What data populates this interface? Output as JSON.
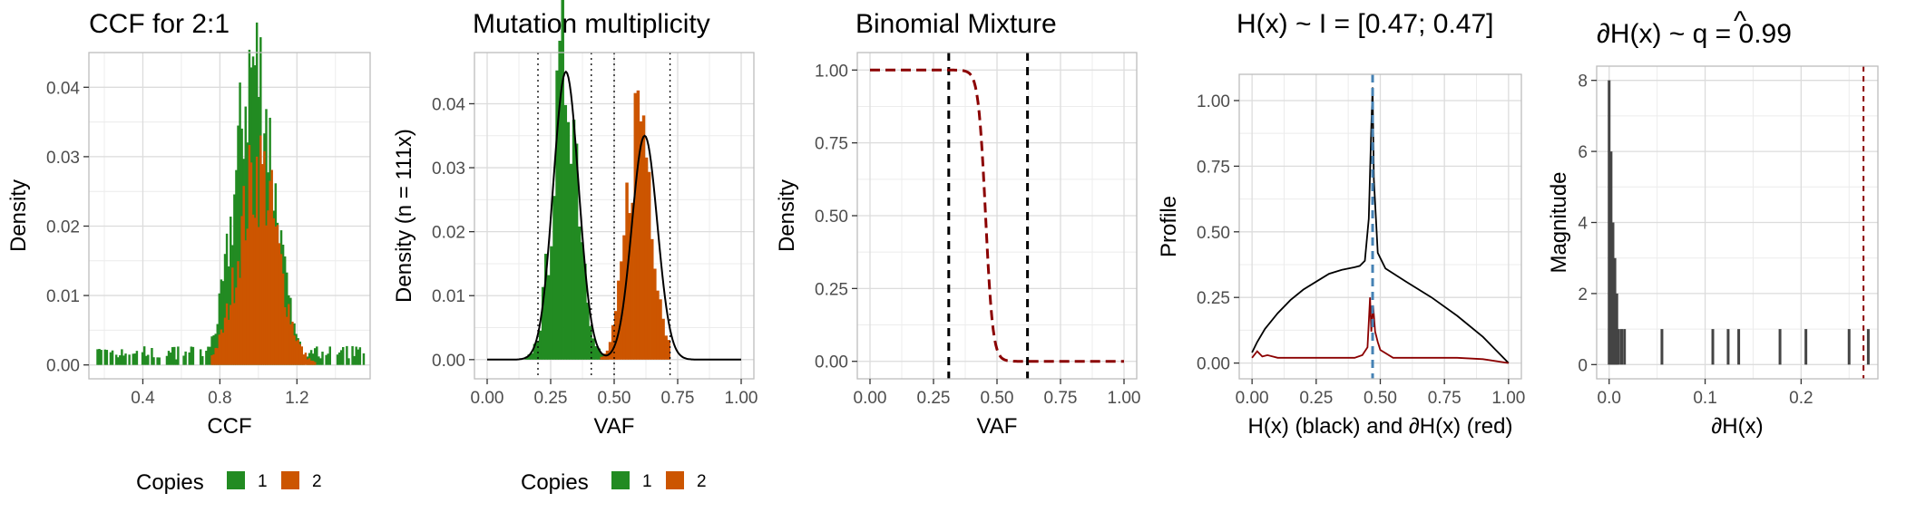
{
  "colors": {
    "copies_1": "#228B22",
    "copies_2": "#CC5500",
    "red_line": "#8B0000",
    "blue_line": "#4682B4",
    "spike": "#444444"
  },
  "chart_data": [
    {
      "id": "ccf",
      "type": "histogram",
      "title": "CCF for 2:1",
      "xlabel": "CCF",
      "ylabel": "Density",
      "xlim": [
        0.12,
        1.58
      ],
      "ylim": [
        -0.002,
        0.045
      ],
      "xticks": [
        0.4,
        0.8,
        1.2
      ],
      "yticks": [
        0.0,
        0.01,
        0.02,
        0.03,
        0.04
      ],
      "ytick_labels": [
        "0.00",
        "0.01",
        "0.02",
        "0.03",
        "0.04"
      ],
      "legend": {
        "title": "Copies",
        "items": [
          {
            "label": "1",
            "color": "#228B22"
          },
          {
            "label": "2",
            "color": "#CC5500"
          }
        ],
        "position": "bottom"
      },
      "series": [
        {
          "name": "1",
          "mean": 0.98,
          "sd": 0.1,
          "peak": 0.043,
          "range": [
            0.15,
            1.55
          ],
          "tail_density": 0.002
        },
        {
          "name": "2",
          "mean": 1.0,
          "sd": 0.1,
          "peak": 0.028,
          "range": [
            0.75,
            1.3
          ]
        }
      ]
    },
    {
      "id": "mult",
      "type": "histogram",
      "title": "Mutation multiplicity",
      "xlabel": "VAF",
      "ylabel": "Density (n = 111x)",
      "xlim": [
        -0.05,
        1.05
      ],
      "ylim": [
        -0.003,
        0.048
      ],
      "xticks": [
        0.0,
        0.25,
        0.5,
        0.75,
        1.0
      ],
      "xtick_labels": [
        "0.00",
        "0.25",
        "0.50",
        "0.75",
        "1.00"
      ],
      "yticks": [
        0.0,
        0.01,
        0.02,
        0.03,
        0.04
      ],
      "ytick_labels": [
        "0.00",
        "0.01",
        "0.02",
        "0.03",
        "0.04"
      ],
      "vlines": [
        0.2,
        0.41,
        0.5,
        0.72
      ],
      "legend": {
        "title": "Copies",
        "items": [
          {
            "label": "1",
            "color": "#228B22"
          },
          {
            "label": "2",
            "color": "#CC5500"
          }
        ],
        "position": "bottom"
      },
      "series": [
        {
          "name": "1",
          "mean": 0.31,
          "sd": 0.05,
          "peak": 0.046,
          "range": [
            0.05,
            0.48
          ]
        },
        {
          "name": "2",
          "mean": 0.6,
          "sd": 0.05,
          "peak": 0.039,
          "range": [
            0.45,
            0.72
          ]
        }
      ],
      "fit_curve": {
        "components": [
          {
            "mean": 0.31,
            "sd": 0.05,
            "peak": 0.045
          },
          {
            "mean": 0.62,
            "sd": 0.05,
            "peak": 0.035
          }
        ],
        "range": [
          0.0,
          1.0
        ]
      }
    },
    {
      "id": "binom",
      "type": "line",
      "title": "Binomial Mixture",
      "xlabel": "VAF",
      "ylabel": "Density",
      "xlim": [
        -0.05,
        1.05
      ],
      "ylim": [
        -0.06,
        1.06
      ],
      "xticks": [
        0.0,
        0.25,
        0.5,
        0.75,
        1.0
      ],
      "xtick_labels": [
        "0.00",
        "0.25",
        "0.50",
        "0.75",
        "1.00"
      ],
      "yticks": [
        0.0,
        0.25,
        0.5,
        0.75,
        1.0
      ],
      "ytick_labels": [
        "0.00",
        "0.25",
        "0.50",
        "0.75",
        "1.00"
      ],
      "vlines": [
        0.31,
        0.62
      ],
      "curve": {
        "type": "sigmoid",
        "midpoint": 0.455,
        "steepness": 70
      }
    },
    {
      "id": "profile",
      "type": "line",
      "title": "H(x) ~ I = [0.47; 0.47]",
      "xlabel": "H(x) (black) and ∂H(x) (red)",
      "ylabel": "Profile",
      "xlim": [
        -0.05,
        1.05
      ],
      "ylim": [
        -0.06,
        1.1
      ],
      "xticks": [
        0.0,
        0.25,
        0.5,
        0.75,
        1.0
      ],
      "xtick_labels": [
        "0.00",
        "0.25",
        "0.50",
        "0.75",
        "1.00"
      ],
      "yticks": [
        0.0,
        0.25,
        0.5,
        0.75,
        1.0
      ],
      "ytick_labels": [
        "0.00",
        "0.25",
        "0.50",
        "0.75",
        "1.00"
      ],
      "vline": 0.47,
      "black_points": [
        [
          0.0,
          0.04
        ],
        [
          0.02,
          0.08
        ],
        [
          0.05,
          0.13
        ],
        [
          0.1,
          0.19
        ],
        [
          0.15,
          0.24
        ],
        [
          0.2,
          0.28
        ],
        [
          0.25,
          0.31
        ],
        [
          0.3,
          0.34
        ],
        [
          0.35,
          0.355
        ],
        [
          0.4,
          0.365
        ],
        [
          0.42,
          0.37
        ],
        [
          0.44,
          0.39
        ],
        [
          0.455,
          0.55
        ],
        [
          0.465,
          0.9
        ],
        [
          0.47,
          1.05
        ],
        [
          0.475,
          0.7
        ],
        [
          0.49,
          0.42
        ],
        [
          0.52,
          0.36
        ],
        [
          0.6,
          0.31
        ],
        [
          0.7,
          0.25
        ],
        [
          0.8,
          0.18
        ],
        [
          0.9,
          0.1
        ],
        [
          0.95,
          0.05
        ],
        [
          1.0,
          0.0
        ]
      ],
      "red_points": [
        [
          0.0,
          0.02
        ],
        [
          0.02,
          0.045
        ],
        [
          0.04,
          0.025
        ],
        [
          0.06,
          0.03
        ],
        [
          0.1,
          0.02
        ],
        [
          0.2,
          0.02
        ],
        [
          0.3,
          0.02
        ],
        [
          0.4,
          0.02
        ],
        [
          0.43,
          0.03
        ],
        [
          0.45,
          0.06
        ],
        [
          0.46,
          0.25
        ],
        [
          0.465,
          0.12
        ],
        [
          0.472,
          0.22
        ],
        [
          0.48,
          0.12
        ],
        [
          0.49,
          0.08
        ],
        [
          0.5,
          0.05
        ],
        [
          0.55,
          0.02
        ],
        [
          0.7,
          0.02
        ],
        [
          0.8,
          0.02
        ],
        [
          0.9,
          0.015
        ],
        [
          1.0,
          0.0
        ]
      ]
    },
    {
      "id": "mag",
      "type": "spike",
      "title": "∂H(x) ~  q = 0.99",
      "title_hat": "^",
      "xlabel": "∂H(x)",
      "ylabel": "Magnitude",
      "xlim": [
        -0.013,
        0.28
      ],
      "ylim": [
        -0.4,
        8.4
      ],
      "xticks": [
        0.0,
        0.1,
        0.2
      ],
      "xtick_labels": [
        "0.0",
        "0.1",
        "0.2"
      ],
      "yticks": [
        0,
        2,
        4,
        6,
        8
      ],
      "ytick_labels": [
        "0",
        "2",
        "4",
        "6",
        "8"
      ],
      "vline": 0.265,
      "spikes": [
        [
          0.0,
          8
        ],
        [
          0.002,
          6
        ],
        [
          0.004,
          4
        ],
        [
          0.006,
          3
        ],
        [
          0.008,
          2
        ],
        [
          0.01,
          1
        ],
        [
          0.013,
          1
        ],
        [
          0.016,
          1
        ],
        [
          0.055,
          1
        ],
        [
          0.108,
          1
        ],
        [
          0.124,
          1
        ],
        [
          0.135,
          1
        ],
        [
          0.178,
          1
        ],
        [
          0.205,
          1
        ],
        [
          0.25,
          1
        ],
        [
          0.27,
          1
        ]
      ]
    }
  ]
}
